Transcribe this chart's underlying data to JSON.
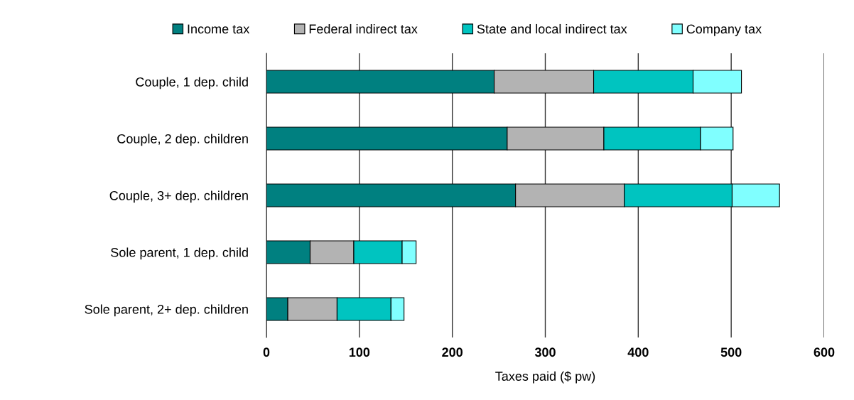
{
  "chart_data": {
    "type": "bar",
    "orientation": "horizontal",
    "stacked": true,
    "categories": [
      "Couple, 1 dep. child",
      "Couple, 2 dep. children",
      "Couple, 3+ dep. children",
      "Sole parent, 1 dep. child",
      "Sole parent, 2+ dep. children"
    ],
    "series": [
      {
        "name": "Income tax",
        "color": "#008080",
        "values": [
          245,
          259,
          268,
          47,
          23
        ]
      },
      {
        "name": "Federal indirect tax",
        "color": "#b3b3b3",
        "values": [
          107,
          104,
          117,
          47,
          53
        ]
      },
      {
        "name": "State and local indirect tax",
        "color": "#00c4c0",
        "values": [
          107,
          104,
          116,
          52,
          58
        ]
      },
      {
        "name": "Company tax",
        "color": "#80ffff",
        "values": [
          52,
          35,
          51,
          15,
          14
        ]
      }
    ],
    "xlabel": "Taxes paid ($ pw)",
    "xlim": [
      0,
      600
    ],
    "xticks": [
      0,
      100,
      200,
      300,
      400,
      500,
      600
    ],
    "grid": "x",
    "legend": "top"
  }
}
